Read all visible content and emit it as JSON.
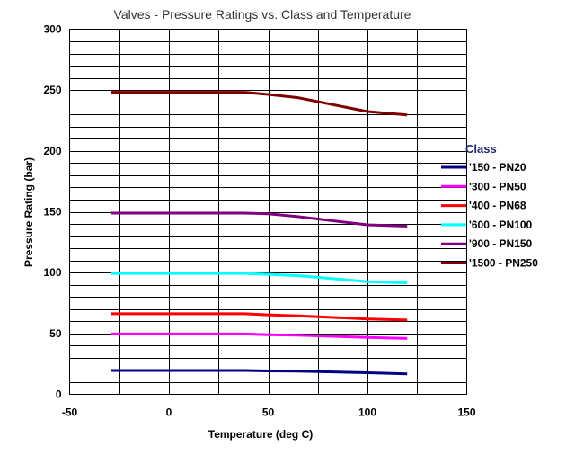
{
  "chart_data": {
    "type": "line",
    "title": "Valves - Pressure Ratings vs. Class and Temperature",
    "xlabel": "Temperature (deg C)",
    "ylabel": "Pressure Rating (bar)",
    "xlim": [
      -50,
      150
    ],
    "ylim": [
      0,
      300
    ],
    "xticks": [
      -50,
      0,
      50,
      100,
      150
    ],
    "yticks": [
      0,
      50,
      100,
      150,
      200,
      250,
      300
    ],
    "grid_x_step": 25,
    "grid_y_step": 10,
    "grid": true,
    "legend_title": "Class",
    "legend_position": "right",
    "series": [
      {
        "name": "'150 - PN20",
        "color": "#000080",
        "x": [
          -29,
          38,
          50,
          65,
          100,
          120
        ],
        "y": [
          19.6,
          19.6,
          19.2,
          19.0,
          17.7,
          16.8
        ]
      },
      {
        "name": "'300 - PN50",
        "color": "#ff00ff",
        "x": [
          -29,
          38,
          50,
          65,
          100,
          120
        ],
        "y": [
          49.6,
          49.6,
          49.0,
          48.6,
          46.7,
          45.9
        ]
      },
      {
        "name": "'400 - PN68",
        "color": "#ff0000",
        "x": [
          -29,
          38,
          50,
          65,
          100,
          120
        ],
        "y": [
          66.2,
          66.2,
          65.3,
          64.5,
          61.9,
          61.0
        ]
      },
      {
        "name": "'600 - PN100",
        "color": "#00ffff",
        "x": [
          -29,
          38,
          50,
          65,
          100,
          120
        ],
        "y": [
          99.3,
          99.3,
          98.6,
          97.5,
          92.6,
          91.6
        ]
      },
      {
        "name": "'900 - PN150",
        "color": "#800080",
        "x": [
          -29,
          38,
          50,
          65,
          100,
          120
        ],
        "y": [
          148.9,
          148.9,
          148.4,
          146.0,
          139.3,
          138.2
        ]
      },
      {
        "name": "'1500 - PN250",
        "color": "#800000",
        "x": [
          -29,
          38,
          50,
          65,
          100,
          120
        ],
        "y": [
          248.2,
          248.2,
          246.4,
          243.8,
          232.4,
          229.6
        ]
      }
    ]
  }
}
